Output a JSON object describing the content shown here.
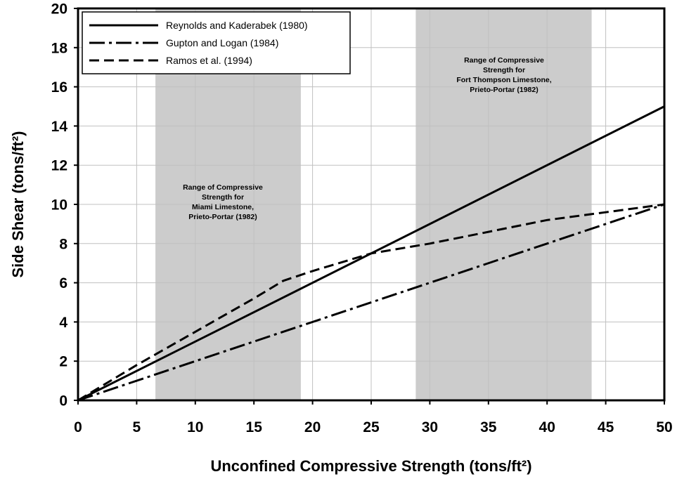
{
  "chart_data": {
    "type": "line",
    "xlabel": "Unconfined Compressive Strength (tons/ft²)",
    "ylabel": "Side Shear (tons/ft²)",
    "xlim": [
      0,
      50
    ],
    "ylim": [
      0,
      20
    ],
    "x_ticks": [
      "0",
      "5",
      "10",
      "15",
      "20",
      "25",
      "30",
      "35",
      "40",
      "45",
      "50"
    ],
    "y_ticks": [
      "0",
      "2",
      "4",
      "6",
      "8",
      "10",
      "12",
      "14",
      "16",
      "18",
      "20"
    ],
    "grid": true,
    "legend_position": "top-left",
    "series": [
      {
        "name": "Reynolds and Kaderabek (1980)",
        "style": "solid",
        "x": [
          0,
          50
        ],
        "y": [
          0,
          15
        ]
      },
      {
        "name": "Gupton and Logan (1984)",
        "style": "dash-dot",
        "x": [
          0,
          50
        ],
        "y": [
          0,
          10
        ]
      },
      {
        "name": "Ramos et al. (1994)",
        "style": "dashed",
        "x": [
          0,
          5,
          10,
          15,
          17.5,
          20,
          25,
          30,
          35,
          40,
          45,
          50
        ],
        "y": [
          0,
          1.8,
          3.5,
          5.2,
          6.1,
          6.6,
          7.5,
          8.0,
          8.6,
          9.2,
          9.6,
          10.0
        ]
      }
    ],
    "shaded_ranges": [
      {
        "x_range": [
          6.6,
          19.0
        ],
        "label": [
          "Range of Compressive",
          "Strength for",
          "Miami Limestone,",
          "Prieto-Portar (1982)"
        ]
      },
      {
        "x_range": [
          28.8,
          43.8
        ],
        "label": [
          "Range of Compressive",
          "Strength for",
          "Fort Thompson Limestone,",
          "Prieto-Portar (1982)"
        ]
      }
    ],
    "colors": {
      "band": "#cccccc",
      "lines": "#000000",
      "grid": "#c0c0c0"
    }
  }
}
